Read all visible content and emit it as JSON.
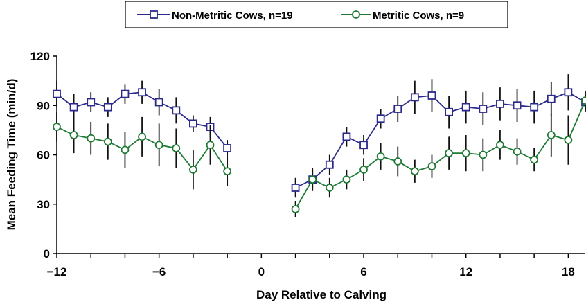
{
  "chart_data": {
    "type": "line",
    "xlabel": "Day Relative to Calving",
    "ylabel": "Mean Feeding Time (min/d)",
    "xlim": [
      -12,
      19
    ],
    "ylim": [
      0,
      120
    ],
    "x_ticks": [
      {
        "value": -12,
        "label": "−12"
      },
      {
        "value": -6,
        "label": "−6"
      },
      {
        "value": 0,
        "label": "0"
      },
      {
        "value": 6,
        "label": "6"
      },
      {
        "value": 12,
        "label": "12"
      },
      {
        "value": 18,
        "label": "18"
      }
    ],
    "y_ticks": [
      {
        "value": 0,
        "label": "0"
      },
      {
        "value": 30,
        "label": "30"
      },
      {
        "value": 60,
        "label": "60"
      },
      {
        "value": 90,
        "label": "90"
      },
      {
        "value": 120,
        "label": "120"
      }
    ],
    "grid": false,
    "legend_position": "top-center",
    "series": [
      {
        "name": "Non-Metritic Cows, n=19",
        "marker": "square",
        "color": "#2b2a8c",
        "segments": [
          {
            "x": [
              -12,
              -11,
              -10,
              -9,
              -8,
              -7,
              -6,
              -5,
              -4,
              -3,
              -2
            ],
            "y": [
              97,
              89,
              92,
              89,
              97,
              98,
              92,
              87,
              79,
              77,
              64
            ],
            "err": [
              8,
              8,
              6,
              6,
              6,
              7,
              8,
              8,
              5,
              6,
              5
            ]
          },
          {
            "x": [
              2,
              3,
              4,
              5,
              6,
              7,
              8,
              9,
              10,
              11,
              12,
              13,
              14,
              15,
              16,
              17,
              18,
              19
            ],
            "y": [
              40,
              45,
              54,
              71,
              66,
              82,
              88,
              95,
              96,
              86,
              89,
              88,
              91,
              90,
              89,
              94,
              98,
              92
            ],
            "err": [
              6,
              6,
              6,
              6,
              6,
              6,
              8,
              10,
              10,
              10,
              10,
              10,
              10,
              10,
              10,
              10,
              11,
              6
            ]
          }
        ]
      },
      {
        "name": "Metritic Cows, n=9",
        "marker": "circle",
        "color": "#1f7a35",
        "segments": [
          {
            "x": [
              -12,
              -11,
              -10,
              -9,
              -8,
              -7,
              -6,
              -5,
              -4,
              -3,
              -2
            ],
            "y": [
              77,
              72,
              70,
              68,
              63,
              71,
              66,
              64,
              51,
              66,
              50
            ],
            "err": [
              9,
              11,
              10,
              11,
              11,
              12,
              13,
              12,
              12,
              12,
              9
            ]
          },
          {
            "x": [
              2,
              3,
              4,
              5,
              6,
              7,
              8,
              9,
              10,
              11,
              12,
              13,
              14,
              15,
              16,
              17,
              18,
              19
            ],
            "y": [
              27,
              45,
              40,
              45,
              51,
              59,
              56,
              50,
              53,
              61,
              61,
              60,
              66,
              62,
              57,
              72,
              69,
              93
            ],
            "err": [
              5,
              7,
              6,
              6,
              7,
              8,
              9,
              7,
              7,
              10,
              11,
              10,
              9,
              8,
              7,
              13,
              15,
              6
            ]
          }
        ]
      }
    ]
  }
}
